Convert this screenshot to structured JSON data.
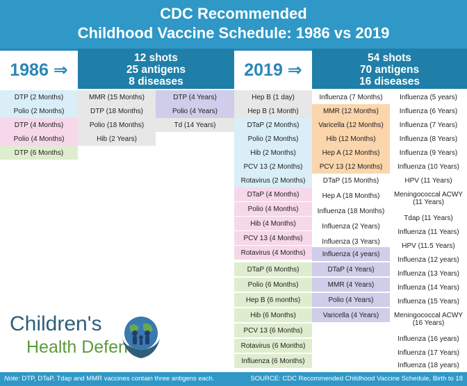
{
  "title_line1": "CDC Recommended",
  "title_line2": "Childhood Vaccine Schedule: 1986 vs 2019",
  "y1986": {
    "label": "1986 ⇒",
    "shots": "12 shots",
    "antigens": "25 antigens",
    "diseases": "8 diseases",
    "col1": [
      "DTP (2 Months)",
      "Polio (2 Months)",
      "DTP (4 Months)",
      "Polio (4 Months)",
      "DTP (6 Months)"
    ],
    "col2": [
      "MMR (15 Months)",
      "DTP (18 Months)",
      "Polio (18 Months)",
      "Hib (2 Years)"
    ],
    "col3": [
      "DTP (4 Years)",
      "Polio (4 Years)",
      "Td (14 Years)"
    ]
  },
  "y2019": {
    "label": "2019 ⇒",
    "shots": "54 shots",
    "antigens": "70 antigens",
    "diseases": "16 diseases",
    "col1": [
      "Hep B (1 day)",
      "Hep B (1 Month)",
      "DTaP (2 Months)",
      "Polio (2 Months)",
      "Hib (2 Months)",
      "PCV 13 (2 Months)",
      "Rotavirus (2 Months)",
      "DTaP (4 Months)",
      "Polio (4 Months)",
      "Hib (4 Months)",
      "PCV 13 (4 Months)",
      "Rotavirus (4 Months)",
      "DTaP (6 Months)",
      "Polio (6 Months)",
      "Hep B (6 months)",
      "Hib (6 Months)",
      "PCV 13 (6 Months)",
      "Rotavirus (6 Months)",
      "Influenza (6 Months)"
    ],
    "col2": [
      "Influenza (7 Months)",
      "MMR (12 Months)",
      "Varicella (12 Months)",
      "Hib (12 Months)",
      "Hep A (12 Months)",
      "PCV 13 (12 Months)",
      "DTaP (15 Months)",
      "Hep A (18 Months)",
      "Influenza (18 Months)",
      "Influenza (2 Years)",
      "Influenza (3 Years)",
      "Influenza (4 years)",
      "DTaP (4 Years)",
      "MMR (4 Years)",
      "Polio (4 Years)",
      "Varicella (4 Years)"
    ],
    "col3": [
      "Influenza (5 years)",
      "Influenza (6 Years)",
      "Influenza (7 Years)",
      "Influenza (8 Years)",
      "Influenza (9 Years)",
      "Influenza (10 Years)",
      "HPV (11 Years)",
      "Meningococcal ACWY (11 Years)",
      "Tdap (11 Years)",
      "Influenza (11 Years)",
      "HPV (11.5 Years)",
      "Influenza (12 years)",
      "Influenza (13 Years)",
      "Influenza (14 Years)",
      "Influenza (15 Years)",
      "Meningococcal ACWY (16 Years)",
      "Influenza (16 years)",
      "Influenza (17 Years)",
      "Influenza (18 years)"
    ]
  },
  "logo": {
    "line1": "Children's",
    "line2": "Health Defense"
  },
  "footer": {
    "note_label": "Note:",
    "note_text": " DTP, DTaP, Tdap and MMR vaccines contain three antigens each.",
    "source": "SOURCE: CDC Recommended Childhood Vaccine Schedule, Birth to 18"
  }
}
